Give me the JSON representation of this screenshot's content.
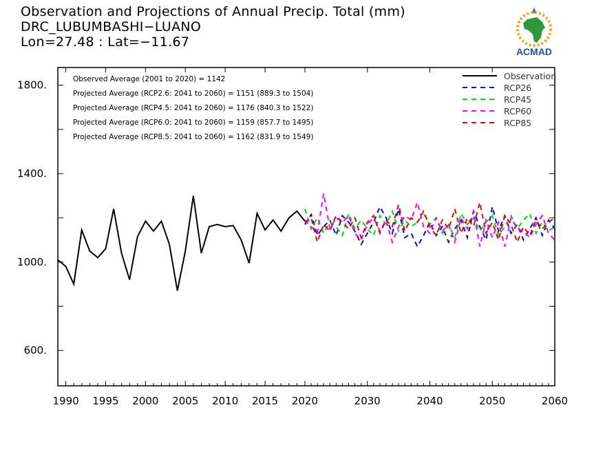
{
  "header": {
    "line1": "Observation and Projections of Annual Precip. Total (mm)",
    "line2": "DRC_LUBUMBASHI−LUANO",
    "line3": "Lon=27.48 : Lat=−11.67"
  },
  "logo": {
    "text": "ACMAD",
    "icon": "acmad-africa-logo"
  },
  "chart_data": {
    "type": "line",
    "xlim": [
      1989,
      2060
    ],
    "ylim": [
      440,
      1880
    ],
    "x_ticks": [
      1990,
      1995,
      2000,
      2005,
      2010,
      2015,
      2020,
      2030,
      2040,
      2050,
      2060
    ],
    "y_ticks": [
      600,
      1000,
      1400,
      1800
    ],
    "y_tick_labels": [
      "600.",
      "1000.",
      "1400.",
      "1800."
    ],
    "annotations": [
      "Observed Average (2001 to 2020) = 1142",
      "Projected Average (RCP2.6: 2041 to 2060) = 1151 (889.3 to 1504)",
      "Projected Average (RCP4.5: 2041 to 2060) = 1176 (840.3 to 1522)",
      "Projected Average (RCP6.0: 2041 to 2060) = 1159 (857.7 to 1495)",
      "Projected Average (RCP8.5: 2041 to 2060) = 1162 (831.9 to 1549)"
    ],
    "legend_position": "top-right",
    "observation": {
      "name": "Observation",
      "color": "#000000",
      "style": "solid",
      "x": [
        1989,
        1990,
        1991,
        1992,
        1993,
        1994,
        1995,
        1996,
        1997,
        1998,
        1999,
        2000,
        2001,
        2002,
        2003,
        2004,
        2005,
        2006,
        2007,
        2008,
        2009,
        2010,
        2011,
        2012,
        2013,
        2014,
        2015,
        2016,
        2017,
        2018,
        2019,
        2020
      ],
      "y": [
        1010,
        980,
        900,
        1145,
        1050,
        1020,
        1060,
        1240,
        1040,
        920,
        1115,
        1185,
        1140,
        1185,
        1080,
        870,
        1050,
        1300,
        1040,
        1160,
        1170,
        1160,
        1165,
        1100,
        995,
        1220,
        1145,
        1190,
        1140,
        1200,
        1230,
        1185
      ]
    },
    "series": [
      {
        "name": "RCP26",
        "color": "#0000ff",
        "style": "dashed",
        "x": [
          2020,
          2021,
          2022,
          2023,
          2024,
          2025,
          2026,
          2027,
          2028,
          2029,
          2030,
          2031,
          2032,
          2033,
          2034,
          2035,
          2036,
          2037,
          2038,
          2039,
          2040,
          2041,
          2042,
          2043,
          2044,
          2045,
          2046,
          2047,
          2048,
          2049,
          2050,
          2051,
          2052,
          2053,
          2054,
          2055,
          2056,
          2057,
          2058,
          2059,
          2060
        ],
        "y": [
          1170,
          1215,
          1120,
          1160,
          1190,
          1120,
          1210,
          1180,
          1140,
          1080,
          1130,
          1180,
          1250,
          1200,
          1130,
          1240,
          1110,
          1130,
          1070,
          1120,
          1180,
          1120,
          1160,
          1090,
          1150,
          1190,
          1110,
          1230,
          1160,
          1100,
          1250,
          1140,
          1210,
          1130,
          1170,
          1100,
          1150,
          1200,
          1120,
          1190,
          1150
        ]
      },
      {
        "name": "RCP45",
        "color": "#00dd00",
        "style": "dashed",
        "x": [
          2020,
          2021,
          2022,
          2023,
          2024,
          2025,
          2026,
          2027,
          2028,
          2029,
          2030,
          2031,
          2032,
          2033,
          2034,
          2035,
          2036,
          2037,
          2038,
          2039,
          2040,
          2041,
          2042,
          2043,
          2044,
          2045,
          2046,
          2047,
          2048,
          2049,
          2050,
          2051,
          2052,
          2053,
          2054,
          2055,
          2056,
          2057,
          2058,
          2059,
          2060
        ],
        "y": [
          1240,
          1150,
          1200,
          1130,
          1180,
          1160,
          1120,
          1220,
          1150,
          1190,
          1150,
          1120,
          1210,
          1170,
          1230,
          1140,
          1190,
          1160,
          1180,
          1220,
          1170,
          1200,
          1130,
          1170,
          1110,
          1220,
          1170,
          1200,
          1140,
          1180,
          1210,
          1120,
          1160,
          1210,
          1150,
          1190,
          1220,
          1130,
          1180,
          1140,
          1160
        ]
      },
      {
        "name": "RCP60",
        "color": "#ff00ff",
        "style": "dashed",
        "x": [
          2020,
          2021,
          2022,
          2023,
          2024,
          2025,
          2026,
          2027,
          2028,
          2029,
          2030,
          2031,
          2032,
          2033,
          2034,
          2035,
          2036,
          2037,
          2038,
          2039,
          2040,
          2041,
          2042,
          2043,
          2044,
          2045,
          2046,
          2047,
          2048,
          2049,
          2050,
          2051,
          2052,
          2053,
          2054,
          2055,
          2056,
          2057,
          2058,
          2059,
          2060
        ],
        "y": [
          1190,
          1160,
          1130,
          1310,
          1150,
          1200,
          1180,
          1210,
          1130,
          1100,
          1170,
          1200,
          1140,
          1190,
          1090,
          1160,
          1210,
          1190,
          1270,
          1160,
          1130,
          1200,
          1140,
          1170,
          1090,
          1200,
          1150,
          1230,
          1070,
          1190,
          1110,
          1180,
          1070,
          1200,
          1150,
          1140,
          1110,
          1170,
          1210,
          1130,
          1100
        ]
      },
      {
        "name": "RCP85",
        "color": "#ee0000",
        "style": "dashed",
        "x": [
          2020,
          2021,
          2022,
          2023,
          2024,
          2025,
          2026,
          2027,
          2028,
          2029,
          2030,
          2031,
          2032,
          2033,
          2034,
          2035,
          2036,
          2037,
          2038,
          2039,
          2040,
          2041,
          2042,
          2043,
          2044,
          2045,
          2046,
          2047,
          2048,
          2049,
          2050,
          2051,
          2052,
          2053,
          2054,
          2055,
          2056,
          2057,
          2058,
          2059,
          2060
        ],
        "y": [
          1180,
          1200,
          1090,
          1170,
          1140,
          1210,
          1180,
          1150,
          1200,
          1110,
          1180,
          1210,
          1130,
          1190,
          1160,
          1260,
          1140,
          1200,
          1180,
          1230,
          1160,
          1120,
          1190,
          1150,
          1240,
          1130,
          1200,
          1160,
          1270,
          1130,
          1180,
          1100,
          1210,
          1170,
          1090,
          1160,
          1120,
          1190,
          1150,
          1180,
          1200
        ]
      }
    ]
  }
}
